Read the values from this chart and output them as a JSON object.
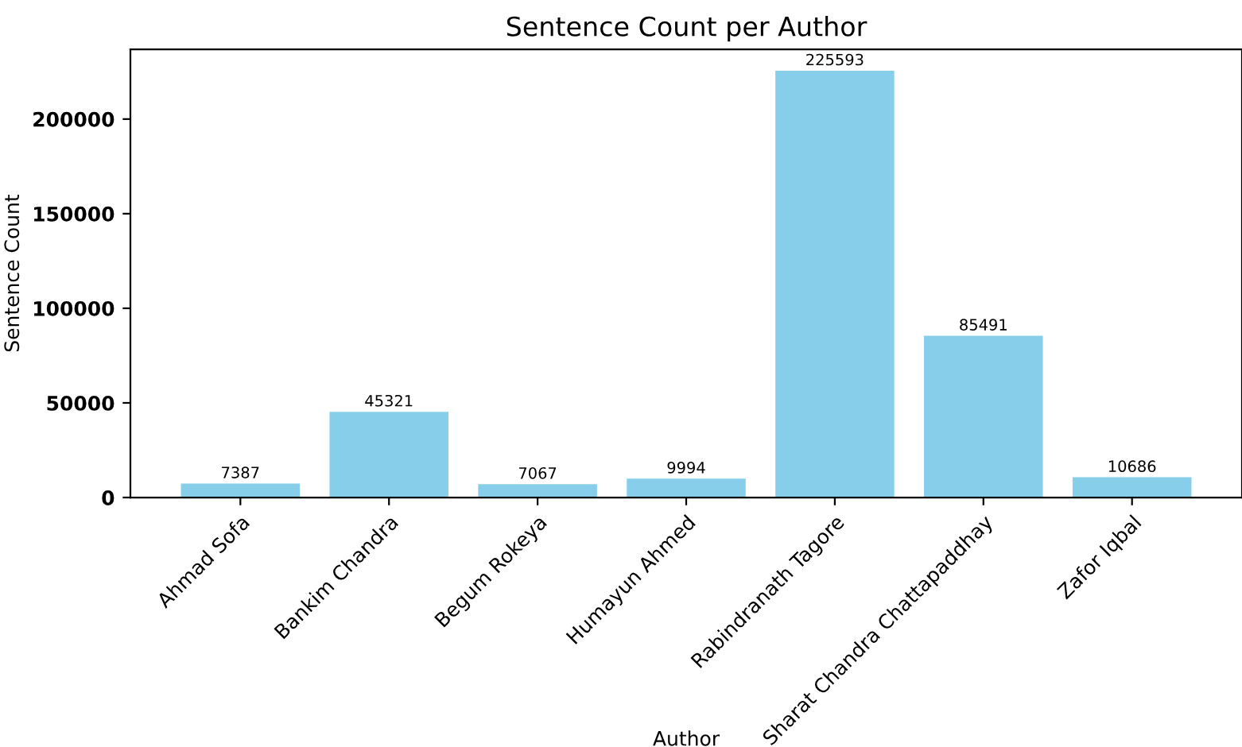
{
  "chart_data": {
    "type": "bar",
    "title": "Sentence Count per Author",
    "xlabel": "Author",
    "ylabel": "Sentence Count",
    "categories": [
      "Ahmad Sofa",
      "Bankim Chandra",
      "Begum Rokeya",
      "Humayun Ahmed",
      "Rabindranath Tagore",
      "Sharat Chandra Chattapaddhay",
      "Zafor Iqbal"
    ],
    "values": [
      7387,
      45321,
      7067,
      9994,
      225593,
      85491,
      10686
    ],
    "color": "#87ceeb",
    "data_labels": true,
    "grid": false,
    "legend": false,
    "ylim": [
      0,
      236872
    ],
    "yticks": [
      0,
      50000,
      100000,
      150000,
      200000
    ]
  }
}
